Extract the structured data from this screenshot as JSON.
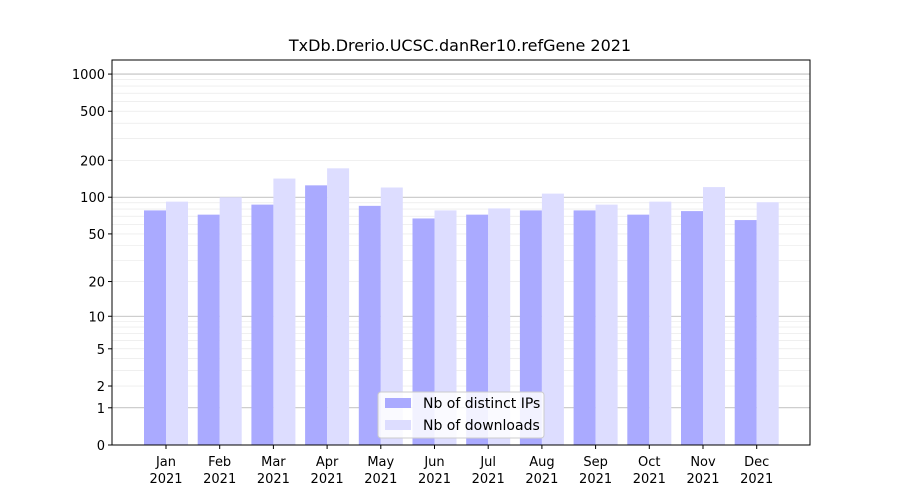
{
  "chart_data": {
    "type": "bar",
    "title": "TxDb.Drerio.UCSC.danRer10.refGene 2021",
    "xlabel": "",
    "ylabel": "",
    "yscale": "log1p",
    "ylim": [
      0,
      1300
    ],
    "grid": true,
    "legend_position": "bottom-center",
    "categories": [
      [
        "Jan",
        "2021"
      ],
      [
        "Feb",
        "2021"
      ],
      [
        "Mar",
        "2021"
      ],
      [
        "Apr",
        "2021"
      ],
      [
        "May",
        "2021"
      ],
      [
        "Jun",
        "2021"
      ],
      [
        "Jul",
        "2021"
      ],
      [
        "Aug",
        "2021"
      ],
      [
        "Sep",
        "2021"
      ],
      [
        "Oct",
        "2021"
      ],
      [
        "Nov",
        "2021"
      ],
      [
        "Dec",
        "2021"
      ]
    ],
    "y_ticks": [
      {
        "value": 0,
        "label": "0"
      },
      {
        "value": 1,
        "label": "1"
      },
      {
        "value": 2,
        "label": "2"
      },
      {
        "value": 5,
        "label": "5"
      },
      {
        "value": 10,
        "label": "10"
      },
      {
        "value": 20,
        "label": "20"
      },
      {
        "value": 50,
        "label": "50"
      },
      {
        "value": 100,
        "label": "100"
      },
      {
        "value": 200,
        "label": "200"
      },
      {
        "value": 500,
        "label": "500"
      },
      {
        "value": 1000,
        "label": "1000"
      }
    ],
    "series": [
      {
        "name": "Nb of distinct IPs",
        "color": "#aaaaff",
        "values": [
          78,
          72,
          87,
          125,
          85,
          67,
          72,
          78,
          78,
          72,
          77,
          65
        ]
      },
      {
        "name": "Nb of downloads",
        "color": "#ddddff",
        "values": [
          92,
          100,
          142,
          172,
          120,
          78,
          81,
          107,
          87,
          92,
          121,
          91
        ]
      }
    ]
  }
}
